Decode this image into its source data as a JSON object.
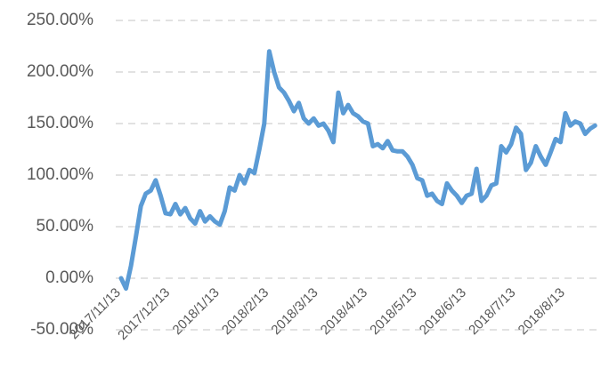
{
  "chart_data": {
    "type": "line",
    "categories": [
      "2017/11/13",
      null,
      null,
      null,
      null,
      null,
      null,
      null,
      null,
      null,
      "2017/12/13",
      null,
      null,
      null,
      null,
      null,
      null,
      null,
      null,
      null,
      "2018/1/13",
      null,
      null,
      null,
      null,
      null,
      null,
      null,
      null,
      null,
      "2018/2/13",
      null,
      null,
      null,
      null,
      null,
      null,
      null,
      null,
      null,
      "2018/3/13",
      null,
      null,
      null,
      null,
      null,
      null,
      null,
      null,
      null,
      "2018/4/13",
      null,
      null,
      null,
      null,
      null,
      null,
      null,
      null,
      null,
      "2018/5/13",
      null,
      null,
      null,
      null,
      null,
      null,
      null,
      null,
      null,
      "2018/6/13",
      null,
      null,
      null,
      null,
      null,
      null,
      null,
      null,
      null,
      "2018/7/13",
      null,
      null,
      null,
      null,
      null,
      null,
      null,
      null,
      null,
      "2018/8/13",
      null,
      null,
      null,
      null,
      null,
      null
    ],
    "series": [
      {
        "color": "#5b9bd5",
        "values": [
          0,
          -10,
          12,
          40,
          70,
          82,
          85,
          95,
          80,
          63,
          62,
          72,
          62,
          68,
          58,
          53,
          65,
          55,
          60,
          55,
          52,
          65,
          88,
          85,
          100,
          92,
          105,
          102,
          125,
          150,
          220,
          200,
          185,
          180,
          172,
          162,
          170,
          155,
          150,
          155,
          148,
          150,
          143,
          132,
          180,
          160,
          168,
          160,
          157,
          152,
          150,
          128,
          130,
          126,
          133,
          124,
          123,
          123,
          118,
          110,
          97,
          95,
          80,
          82,
          75,
          72,
          92,
          85,
          80,
          73,
          80,
          82,
          106,
          75,
          80,
          90,
          92,
          128,
          122,
          130,
          146,
          140,
          105,
          112,
          128,
          118,
          110,
          122,
          135,
          132,
          160,
          148,
          152,
          150,
          140,
          145,
          148
        ]
      }
    ],
    "ylim": [
      -50,
      250
    ],
    "yticks": [
      {
        "value": -50,
        "label": "-50.00%"
      },
      {
        "value": 0,
        "label": "0.00%"
      },
      {
        "value": 50,
        "label": "50.00%"
      },
      {
        "value": 100,
        "label": "100.00%"
      },
      {
        "value": 150,
        "label": "150.00%"
      },
      {
        "value": 200,
        "label": "200.00%"
      },
      {
        "value": 250,
        "label": "250.00%"
      }
    ],
    "grid": true
  }
}
